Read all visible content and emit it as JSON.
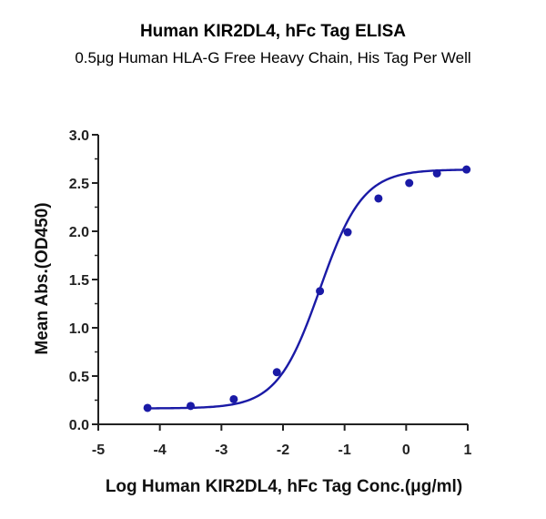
{
  "chart_data": {
    "type": "line",
    "title": "Human KIR2DL4, hFc Tag ELISA",
    "subtitle": "0.5μg Human HLA-G Free Heavy Chain, His Tag Per Well",
    "xlabel": "Log Human KIR2DL4, hFc Tag Conc.(μg/ml)",
    "ylabel": "Mean Abs.(OD450)",
    "xlim": [
      -5,
      1
    ],
    "ylim": [
      0,
      3.0
    ],
    "x_ticks": [
      "-5",
      "-4",
      "-3",
      "-2",
      "-1",
      "0",
      "1"
    ],
    "y_ticks": [
      "0.0",
      "0.5",
      "1.0",
      "1.5",
      "2.0",
      "2.5",
      "3.0"
    ],
    "grid": false,
    "series": [
      {
        "x": [
          -4.2,
          -3.5,
          -2.8,
          -2.1,
          -1.4,
          -0.95,
          -0.45,
          0.05,
          0.5,
          0.98
        ],
        "y": [
          0.17,
          0.19,
          0.26,
          0.54,
          1.38,
          1.99,
          2.34,
          2.5,
          2.6,
          2.64
        ],
        "color": "#1a1aa6",
        "fit": "sigmoid"
      }
    ]
  }
}
